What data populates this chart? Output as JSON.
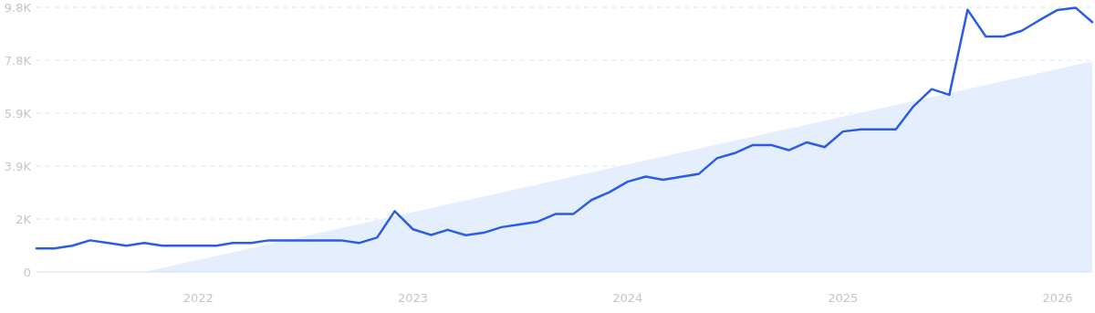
{
  "chart_data": {
    "type": "line",
    "x": [
      "2021-04",
      "2021-05",
      "2021-06",
      "2021-07",
      "2021-08",
      "2021-09",
      "2021-10",
      "2021-11",
      "2021-12",
      "2022-01",
      "2022-02",
      "2022-03",
      "2022-04",
      "2022-05",
      "2022-06",
      "2022-07",
      "2022-08",
      "2022-09",
      "2022-10",
      "2022-11",
      "2022-12",
      "2023-01",
      "2023-02",
      "2023-03",
      "2023-04",
      "2023-05",
      "2023-06",
      "2023-07",
      "2023-08",
      "2023-09",
      "2023-10",
      "2023-11",
      "2023-12",
      "2024-01",
      "2024-02",
      "2024-03",
      "2024-04",
      "2024-05",
      "2024-06",
      "2024-07",
      "2024-08",
      "2024-09",
      "2024-10",
      "2024-11",
      "2024-12",
      "2025-01",
      "2025-02",
      "2025-03",
      "2025-04",
      "2025-05",
      "2025-06",
      "2025-07",
      "2025-08",
      "2025-09",
      "2025-10",
      "2025-11",
      "2025-12",
      "2026-01",
      "2026-02",
      "2026-03"
    ],
    "series": [
      {
        "type": "area",
        "color": "#e4eefc",
        "x": [
          "2021-10",
          "2026-03"
        ],
        "values": [
          0,
          7800
        ]
      },
      {
        "color": "#2b5ce6",
        "values": [
          870,
          870,
          970,
          1170,
          1070,
          970,
          1070,
          970,
          970,
          970,
          970,
          1070,
          1070,
          1170,
          1170,
          1170,
          1170,
          1170,
          1070,
          1270,
          2250,
          1580,
          1370,
          1560,
          1360,
          1450,
          1660,
          1760,
          1860,
          2150,
          2150,
          2670,
          2950,
          3340,
          3530,
          3410,
          3520,
          3630,
          4210,
          4400,
          4700,
          4700,
          4510,
          4800,
          4620,
          5200,
          5280,
          5280,
          5280,
          6130,
          6770,
          6560,
          9710,
          8720,
          8720,
          8930,
          9320,
          9700,
          9780,
          9250
        ]
      }
    ],
    "xlim": [
      "2021-04",
      "2026-03"
    ],
    "xticks": [
      "2022",
      "2023",
      "2024",
      "2025",
      "2026"
    ],
    "ylim": [
      0,
      9800
    ],
    "yticks": [
      0,
      {
        "value": 1960,
        "label": "2K"
      },
      {
        "value": 3920,
        "label": "3.9K"
      },
      {
        "value": 5880,
        "label": "5.9K"
      },
      {
        "value": 7840,
        "label": "7.8K"
      },
      {
        "value": 9800,
        "label": "9.8K"
      }
    ],
    "grid": "y",
    "marker": "none",
    "line_style": "solid"
  }
}
